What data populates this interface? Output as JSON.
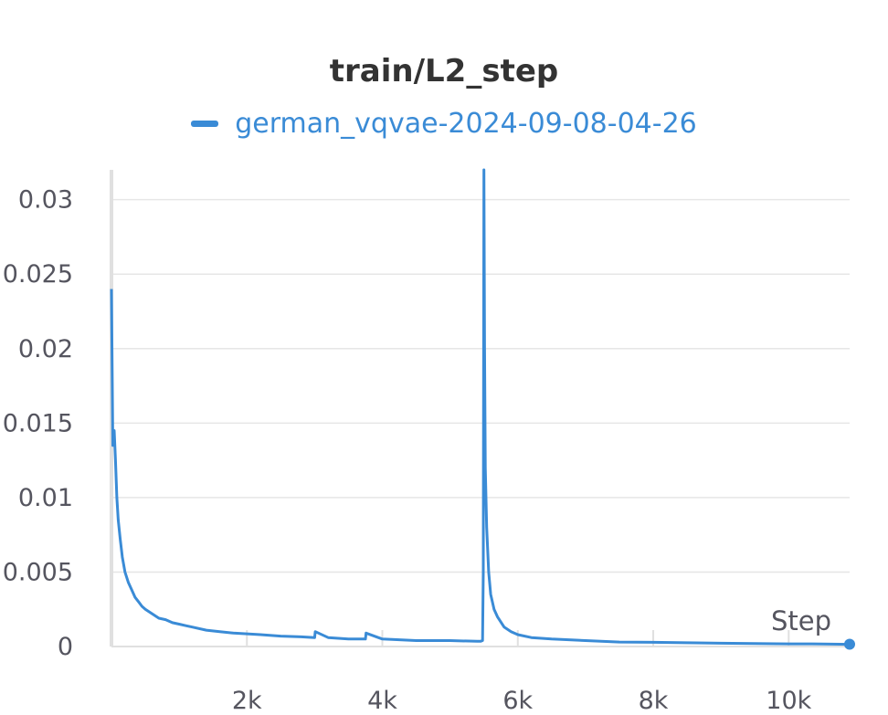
{
  "chart_data": {
    "type": "line",
    "title": "train/L2_step",
    "xlabel": "Step",
    "ylabel": "",
    "xlim": [
      0,
      10900
    ],
    "ylim": [
      0,
      0.032
    ],
    "x_ticks": [
      2000,
      4000,
      6000,
      8000,
      10000
    ],
    "x_tick_labels": [
      "2k",
      "4k",
      "6k",
      "8k",
      "10k"
    ],
    "y_ticks": [
      0,
      0.005,
      0.01,
      0.015,
      0.02,
      0.025,
      0.03
    ],
    "y_tick_labels": [
      "0",
      "0.005",
      "0.01",
      "0.015",
      "0.02",
      "0.025",
      "0.03"
    ],
    "grid": true,
    "legend_position": "top-center",
    "series": [
      {
        "name": "german_vqvae-2024-09-08-04-26",
        "color": "#3a8bd6",
        "x": [
          0,
          20,
          40,
          60,
          80,
          100,
          130,
          160,
          200,
          250,
          300,
          350,
          400,
          450,
          500,
          600,
          700,
          800,
          900,
          1000,
          1100,
          1200,
          1400,
          1600,
          1800,
          2000,
          2200,
          2500,
          2800,
          3000,
          3010,
          3200,
          3500,
          3750,
          3760,
          4000,
          4500,
          5000,
          5400,
          5450,
          5480,
          5490,
          5500,
          5510,
          5520,
          5540,
          5570,
          5600,
          5650,
          5700,
          5800,
          5900,
          6000,
          6200,
          6500,
          7000,
          7500,
          8000,
          8500,
          9000,
          9500,
          10000,
          10500,
          10900
        ],
        "y": [
          0.024,
          0.0135,
          0.0145,
          0.0125,
          0.01,
          0.0085,
          0.0072,
          0.006,
          0.005,
          0.0043,
          0.0038,
          0.0033,
          0.003,
          0.0027,
          0.0025,
          0.0022,
          0.0019,
          0.0018,
          0.0016,
          0.0015,
          0.0014,
          0.0013,
          0.0011,
          0.001,
          0.0009,
          0.00085,
          0.0008,
          0.0007,
          0.00065,
          0.0006,
          0.001,
          0.0006,
          0.0005,
          0.0005,
          0.0009,
          0.0005,
          0.0004,
          0.0004,
          0.00035,
          0.00035,
          0.0004,
          0.005,
          0.032,
          0.02,
          0.012,
          0.008,
          0.005,
          0.0035,
          0.0025,
          0.002,
          0.0013,
          0.001,
          0.0008,
          0.0006,
          0.0005,
          0.0004,
          0.0003,
          0.00028,
          0.00025,
          0.00022,
          0.0002,
          0.00018,
          0.00017,
          0.00015
        ]
      }
    ]
  }
}
